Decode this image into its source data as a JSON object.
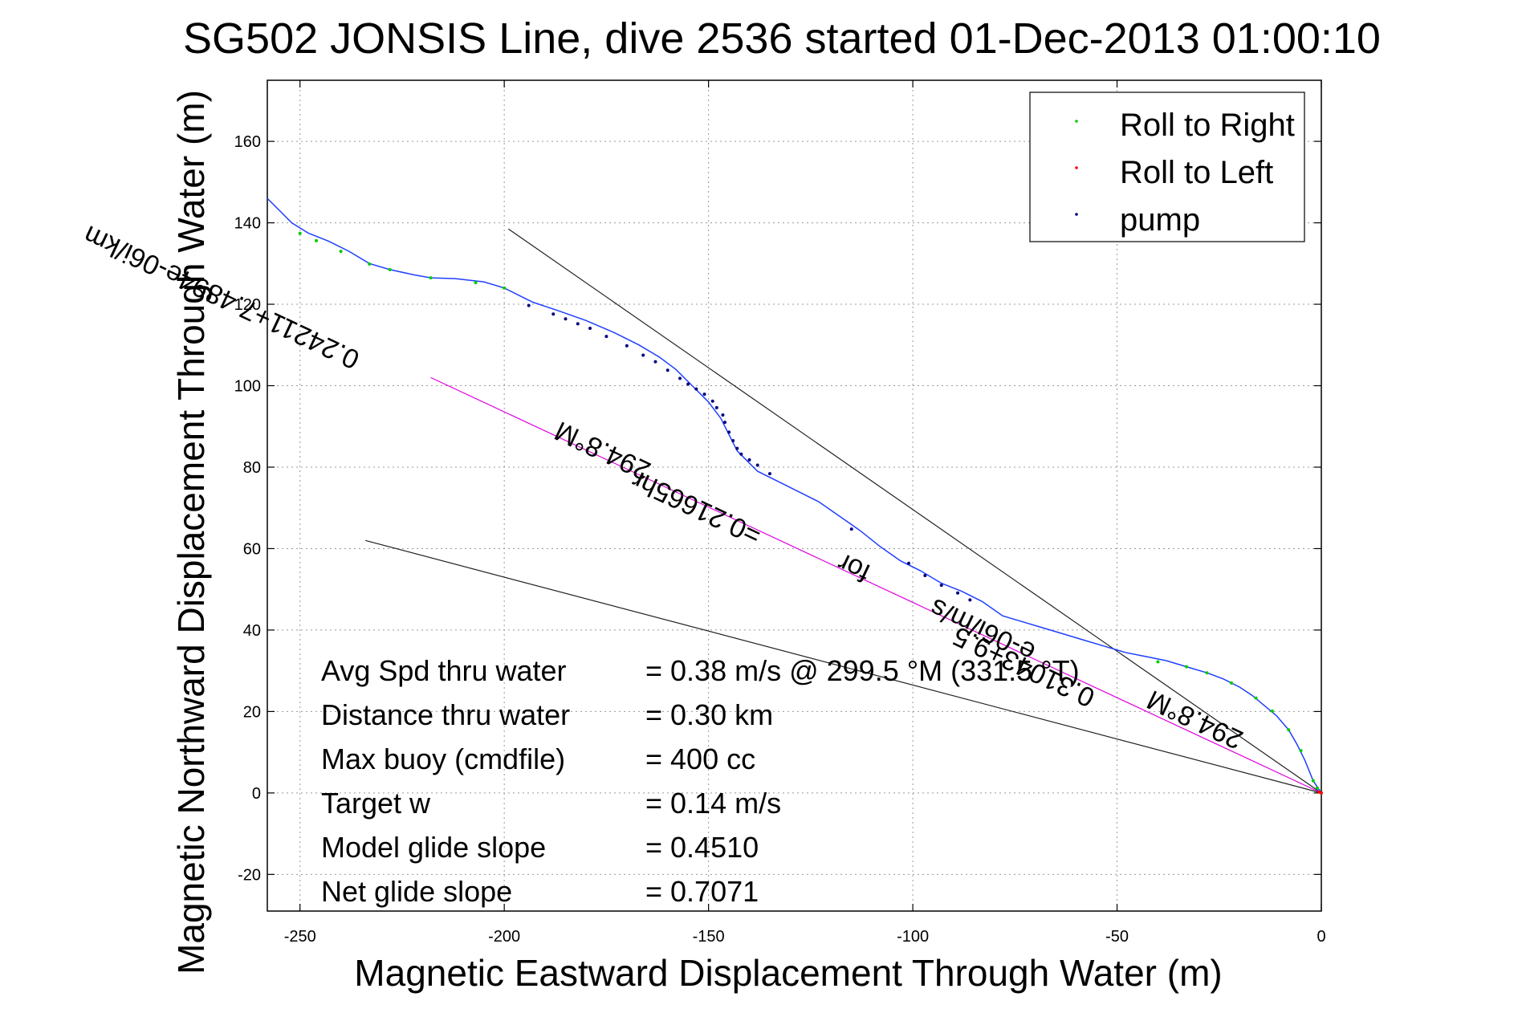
{
  "chart_data": {
    "type": "scatter",
    "title": "SG502 JONSIS Line, dive 2536 started 01-Dec-2013 01:00:10",
    "xlabel": "Magnetic Eastward Displacement Through Water (m)",
    "ylabel": "Magnetic Northward Displacement Through Water (m)",
    "xlim": [
      -258,
      0
    ],
    "ylim": [
      -29,
      175
    ],
    "x_ticks": [
      -250,
      -200,
      -150,
      -100,
      -50,
      0
    ],
    "y_ticks": [
      -20,
      0,
      20,
      40,
      60,
      80,
      100,
      120,
      140,
      160
    ],
    "grid": true,
    "legend_position": "top-right",
    "legend": [
      {
        "label": "Roll to Right",
        "color": "#00cc00"
      },
      {
        "label": "Roll to Left",
        "color": "#ff0000"
      },
      {
        "label": "pump",
        "color": "#000080"
      }
    ],
    "track": {
      "color": "#1f3fff",
      "points": [
        [
          0,
          0
        ],
        [
          -2,
          3
        ],
        [
          -4,
          8
        ],
        [
          -6,
          12
        ],
        [
          -8,
          15.5
        ],
        [
          -11,
          19
        ],
        [
          -14,
          21.5
        ],
        [
          -17,
          24
        ],
        [
          -20,
          26
        ],
        [
          -24,
          28
        ],
        [
          -28,
          29.5
        ],
        [
          -33,
          31
        ],
        [
          -38,
          32.5
        ],
        [
          -43,
          33.5
        ],
        [
          -48,
          34.5
        ],
        [
          -53,
          36
        ],
        [
          -58,
          37.5
        ],
        [
          -63,
          39
        ],
        [
          -68,
          40.5
        ],
        [
          -73,
          42
        ],
        [
          -78,
          43.5
        ],
        [
          -83,
          47
        ],
        [
          -88,
          49.5
        ],
        [
          -93,
          51.5
        ],
        [
          -98,
          54.5
        ],
        [
          -103,
          57
        ],
        [
          -108,
          60.5
        ],
        [
          -113,
          64.5
        ],
        [
          -118,
          68
        ],
        [
          -123,
          71.5
        ],
        [
          -128,
          74
        ],
        [
          -133,
          76.5
        ],
        [
          -138,
          79
        ],
        [
          -141,
          82
        ],
        [
          -143,
          84
        ],
        [
          -145,
          88
        ],
        [
          -147,
          92
        ],
        [
          -150,
          96
        ],
        [
          -154,
          100
        ],
        [
          -158,
          104
        ],
        [
          -162,
          107
        ],
        [
          -167,
          110
        ],
        [
          -173,
          113
        ],
        [
          -180,
          116
        ],
        [
          -187,
          118.5
        ],
        [
          -193,
          120.5
        ],
        [
          -197,
          122.5
        ],
        [
          -200,
          124
        ],
        [
          -205,
          125.5
        ],
        [
          -212,
          126.3
        ],
        [
          -218,
          126.5
        ],
        [
          -222,
          127.2
        ],
        [
          -228,
          128.5
        ],
        [
          -233,
          130
        ],
        [
          -238,
          133
        ],
        [
          -243,
          135.5
        ],
        [
          -248,
          137.5
        ],
        [
          -252,
          140
        ],
        [
          -255,
          143
        ],
        [
          -258,
          146
        ]
      ]
    },
    "pump_points": [
      [
        -194,
        119.7
      ],
      [
        -188,
        117.6
      ],
      [
        -185,
        116.4
      ],
      [
        -182,
        115.2
      ],
      [
        -179,
        114.1
      ],
      [
        -175,
        112.1
      ],
      [
        -170,
        109.8
      ],
      [
        -166,
        107.5
      ],
      [
        -163,
        105.9
      ],
      [
        -160,
        103.8
      ],
      [
        -157,
        101.8
      ],
      [
        -155,
        100.4
      ],
      [
        -153,
        99.2
      ],
      [
        -151,
        97.9
      ],
      [
        -149,
        96.2
      ],
      [
        -148,
        94.6
      ],
      [
        -146.5,
        92.8
      ],
      [
        -146,
        91.0
      ],
      [
        -145,
        88.6
      ],
      [
        -144,
        86.5
      ],
      [
        -143,
        84.6
      ],
      [
        -142,
        83.2
      ],
      [
        -140,
        81.8
      ],
      [
        -138,
        80.5
      ],
      [
        -135,
        78.4
      ],
      [
        -115,
        64.8
      ],
      [
        -101,
        56.4
      ],
      [
        -97,
        53.4
      ],
      [
        -93,
        51.0
      ],
      [
        -89,
        49.1
      ],
      [
        -86,
        47.4
      ]
    ],
    "roll_right_points": [
      [
        -250,
        137.4
      ],
      [
        -246,
        135.6
      ],
      [
        -240,
        133.0
      ],
      [
        -233,
        129.9
      ],
      [
        -228,
        128.5
      ],
      [
        -218,
        126.5
      ],
      [
        -207,
        125.3
      ],
      [
        -200,
        124.0
      ],
      [
        -40,
        32.2
      ],
      [
        -33,
        31.0
      ],
      [
        -28,
        29.5
      ],
      [
        -22,
        27.0
      ],
      [
        -16,
        23.3
      ],
      [
        -12,
        20.1
      ],
      [
        -8,
        15.5
      ],
      [
        -5,
        10.4
      ],
      [
        -2,
        3.0
      ],
      [
        -1,
        1.2
      ]
    ],
    "roll_left_points": [
      [
        0,
        0
      ],
      [
        -0.5,
        0.2
      ]
    ],
    "lines": [
      {
        "name": "upper",
        "color": "#222222",
        "from": [
          -199,
          138.5
        ],
        "to": [
          0,
          0
        ]
      },
      {
        "name": "lower",
        "color": "#222222",
        "from": [
          -234,
          62
        ],
        "to": [
          0,
          0
        ]
      },
      {
        "name": "mean",
        "color": "#e000e0",
        "from": [
          -218,
          102
        ],
        "to": [
          0,
          0
        ]
      }
    ],
    "rotated_labels": [
      {
        "text": "294.8°M",
        "x": -175,
        "y": 86,
        "angle_deg": 205.2,
        "anchor": "middle"
      },
      {
        "text": "0.24211+7.4894e-06i/km",
        "x": -235,
        "y": 108,
        "angle_deg": 205.2,
        "anchor": "start"
      },
      {
        "text": "=0.21665hr",
        "x": -152,
        "y": 72,
        "angle_deg": 205.2,
        "anchor": "middle"
      },
      {
        "text": "for",
        "x": -113.5,
        "y": 57.3,
        "angle_deg": 205.2,
        "anchor": "middle"
      },
      {
        "text": "0.31043+9.5",
        "x": -55,
        "y": 25,
        "angle_deg": 205.2,
        "anchor": "start"
      },
      {
        "text": "e-06i/m/s",
        "x": -82,
        "y": 42,
        "angle_deg": 205.2,
        "anchor": "middle"
      },
      {
        "text": "294.8°M",
        "x": -30,
        "y": 20,
        "angle_deg": 205.2,
        "anchor": "middle"
      }
    ]
  },
  "stats": [
    {
      "label": "Avg Spd thru water",
      "value": "=  0.38 m/s @ 299.5 °M (331.5 °T)"
    },
    {
      "label": "Distance thru water",
      "value": "=  0.30 km"
    },
    {
      "label": "Max buoy (cmdfile)",
      "value": "= 400 cc"
    },
    {
      "label": "Target w",
      "value": "= 0.14 m/s"
    },
    {
      "label": "Model glide slope",
      "value": "= 0.4510"
    },
    {
      "label": "Net glide slope",
      "value": "= 0.7071"
    }
  ]
}
